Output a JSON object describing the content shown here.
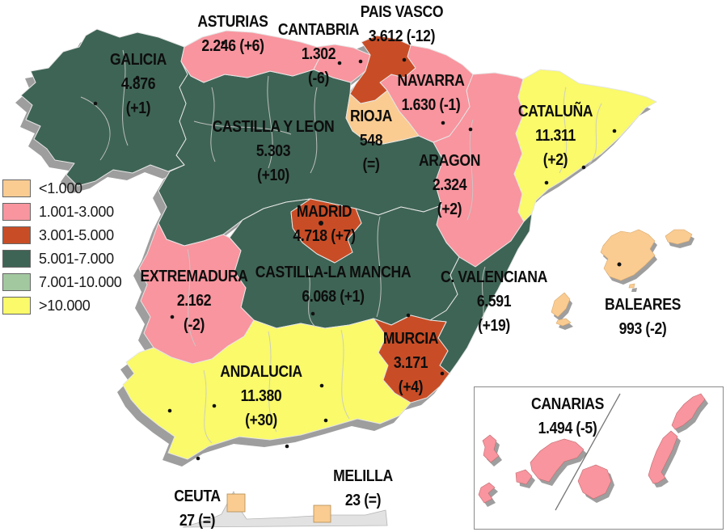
{
  "colors": {
    "shadow": "#9E9E9E",
    "coast_strip": "#E2E2E2",
    "coast_strip_border": "#B5B5B5",
    "inset_border": "#8A8A8A",
    "inset_divider": "#777777",
    "province_line": "#C9C9C9",
    "region_border": "#E6E6E6",
    "dot": "#111111",
    "text": "#0D0D0D"
  },
  "legend": {
    "items": [
      {
        "label": "<1.000",
        "color": "#FACC92"
      },
      {
        "label": "1.001-3.000",
        "color": "#F8959E"
      },
      {
        "label": "3.001-5.000",
        "color": "#C84D26"
      },
      {
        "label": "5.001-7.000",
        "color": "#3E6455"
      },
      {
        "label": "7.001-10.000",
        "color": "#A2C8A0"
      },
      {
        "label": ">10.000",
        "color": "#FAFA6A"
      }
    ]
  },
  "regions": [
    {
      "id": "galicia",
      "name": "GALICIA",
      "value": "4.876",
      "change": "+1",
      "line2": "4.876",
      "line3": "(+1)",
      "color": "#3E6455"
    },
    {
      "id": "asturias",
      "name": "ASTURIAS",
      "value": "2.246",
      "change": "+6",
      "line2": "2.246 (+6)",
      "line3": "",
      "color": "#F8959E"
    },
    {
      "id": "cantabria",
      "name": "CANTABRIA",
      "value": "1.302",
      "change": "-6",
      "line2": "1.302",
      "line3": "(-6)",
      "color": "#F8959E"
    },
    {
      "id": "pais-vasco",
      "name": "PAIS VASCO",
      "value": "3.612",
      "change": "-12",
      "line2": "3.612 (-12)",
      "line3": "",
      "color": "#C84D26"
    },
    {
      "id": "navarra",
      "name": "NAVARRA",
      "value": "1.630",
      "change": "-1",
      "line2": "1.630 (-1)",
      "line3": "",
      "color": "#F8959E"
    },
    {
      "id": "rioja",
      "name": "RIOJA",
      "value": "548",
      "change": "=",
      "line2": "548",
      "line3": "(=)",
      "color": "#FACC92"
    },
    {
      "id": "cataluna",
      "name": "CATALUÑA",
      "value": "11.311",
      "change": "+2",
      "line2": "11.311",
      "line3": "(+2)",
      "color": "#FAFA6A"
    },
    {
      "id": "castilla-y-leon",
      "name": "CASTILLA Y LEON",
      "value": "5.303",
      "change": "+10",
      "line2": "5.303",
      "line3": "(+10)",
      "color": "#3E6455"
    },
    {
      "id": "aragon",
      "name": "ARAGON",
      "value": "2.324",
      "change": "+2",
      "line2": "2.324",
      "line3": "(+2)",
      "color": "#F8959E"
    },
    {
      "id": "madrid",
      "name": "MADRID",
      "value": "4.718",
      "change": "+7",
      "line2": "4.718 (+7)",
      "line3": "",
      "color": "#C84D26"
    },
    {
      "id": "extremadura",
      "name": "EXTREMADURA",
      "value": "2.162",
      "change": "-2",
      "line2": "2.162",
      "line3": "(-2)",
      "color": "#F8959E"
    },
    {
      "id": "castilla-mancha",
      "name": "CASTILLA-LA MANCHA",
      "value": "6.068",
      "change": "+1",
      "line2": "6.068 (+1)",
      "line3": "",
      "color": "#3E6455"
    },
    {
      "id": "valenciana",
      "name": "C. VALENCIANA",
      "value": "6.591",
      "change": "+19",
      "line2": "6.591",
      "line3": "(+19)",
      "color": "#3E6455"
    },
    {
      "id": "murcia",
      "name": "MURCIA",
      "value": "3.171",
      "change": "+4",
      "line2": "3.171",
      "line3": "(+4)",
      "color": "#C84D26"
    },
    {
      "id": "andalucia",
      "name": "ANDALUCIA",
      "value": "11.380",
      "change": "+30",
      "line2": "11.380",
      "line3": "(+30)",
      "color": "#FAFA6A"
    },
    {
      "id": "baleares",
      "name": "BALEARES",
      "value": "993",
      "change": "-2",
      "line2": "993 (-2)",
      "line3": "",
      "color": "#FACC92"
    },
    {
      "id": "canarias",
      "name": "CANARIAS",
      "value": "1.494",
      "change": "-5",
      "line2": "1.494 (-5)",
      "line3": "",
      "color": "#F8959E"
    },
    {
      "id": "ceuta",
      "name": "CEUTA",
      "value": "27",
      "change": "=",
      "line2": "27 (=)",
      "line3": "",
      "color": "#FACC92"
    },
    {
      "id": "melilla",
      "name": "MELILLA",
      "value": "23",
      "change": "=",
      "line2": "23 (=)",
      "line3": "",
      "color": "#FACC92"
    }
  ]
}
